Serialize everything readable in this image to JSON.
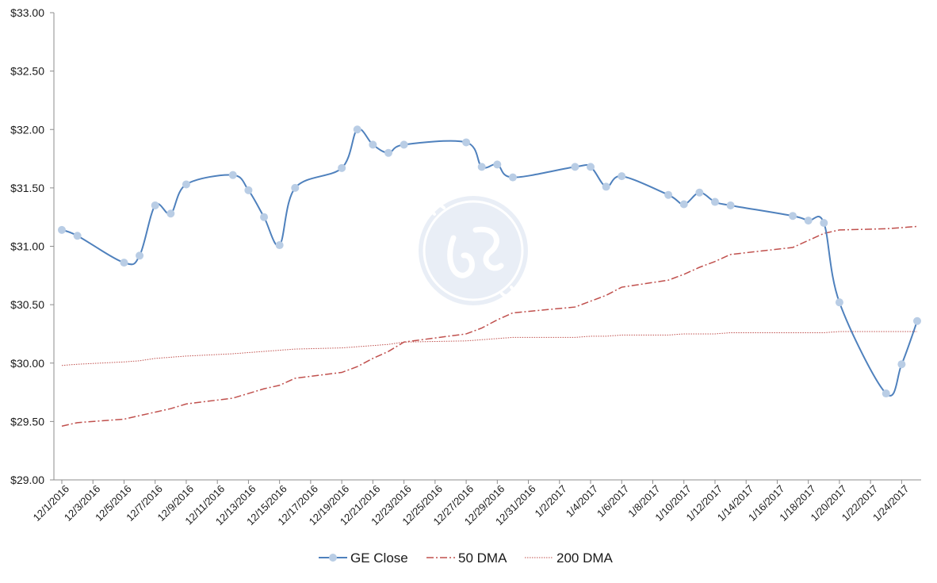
{
  "chart_data": {
    "type": "line",
    "title": "",
    "xlabel": "",
    "ylabel": "",
    "ylim": [
      29.0,
      33.0
    ],
    "y_ticks": [
      "$29.00",
      "$29.50",
      "$30.00",
      "$30.50",
      "$31.00",
      "$31.50",
      "$32.00",
      "$32.50",
      "$33.00"
    ],
    "x_range": [
      "2016-12-01",
      "2017-01-25"
    ],
    "x_tick_labels": [
      "12/1/2016",
      "12/3/2016",
      "12/5/2016",
      "12/7/2016",
      "12/9/2016",
      "12/11/2016",
      "12/13/2016",
      "12/15/2016",
      "12/17/2016",
      "12/19/2016",
      "12/21/2016",
      "12/23/2016",
      "12/25/2016",
      "12/27/2016",
      "12/29/2016",
      "12/31/2016",
      "1/2/2017",
      "1/4/2017",
      "1/6/2017",
      "1/8/2017",
      "1/10/2017",
      "1/12/2017",
      "1/14/2017",
      "1/16/2017",
      "1/18/2017",
      "1/20/2017",
      "1/22/2017",
      "1/24/2017"
    ],
    "grid": false,
    "legend_position": "bottom",
    "series": [
      {
        "name": "GE Close",
        "color": "#4f81bd",
        "marker_color": "#b9cde5",
        "style": "solid-smooth-markers",
        "points": [
          {
            "x": "2016-12-01",
            "y": 31.14
          },
          {
            "x": "2016-12-02",
            "y": 31.09
          },
          {
            "x": "2016-12-05",
            "y": 30.86
          },
          {
            "x": "2016-12-06",
            "y": 30.92
          },
          {
            "x": "2016-12-07",
            "y": 31.35
          },
          {
            "x": "2016-12-08",
            "y": 31.28
          },
          {
            "x": "2016-12-09",
            "y": 31.53
          },
          {
            "x": "2016-12-12",
            "y": 31.61
          },
          {
            "x": "2016-12-13",
            "y": 31.48
          },
          {
            "x": "2016-12-14",
            "y": 31.25
          },
          {
            "x": "2016-12-15",
            "y": 31.01
          },
          {
            "x": "2016-12-16",
            "y": 31.5
          },
          {
            "x": "2016-12-19",
            "y": 31.67
          },
          {
            "x": "2016-12-20",
            "y": 32.0
          },
          {
            "x": "2016-12-21",
            "y": 31.87
          },
          {
            "x": "2016-12-22",
            "y": 31.8
          },
          {
            "x": "2016-12-23",
            "y": 31.87
          },
          {
            "x": "2016-12-27",
            "y": 31.89
          },
          {
            "x": "2016-12-28",
            "y": 31.68
          },
          {
            "x": "2016-12-29",
            "y": 31.7
          },
          {
            "x": "2016-12-30",
            "y": 31.59
          },
          {
            "x": "2017-01-03",
            "y": 31.68
          },
          {
            "x": "2017-01-04",
            "y": 31.68
          },
          {
            "x": "2017-01-05",
            "y": 31.51
          },
          {
            "x": "2017-01-06",
            "y": 31.6
          },
          {
            "x": "2017-01-09",
            "y": 31.44
          },
          {
            "x": "2017-01-10",
            "y": 31.36
          },
          {
            "x": "2017-01-11",
            "y": 31.46
          },
          {
            "x": "2017-01-12",
            "y": 31.38
          },
          {
            "x": "2017-01-13",
            "y": 31.35
          },
          {
            "x": "2017-01-17",
            "y": 31.26
          },
          {
            "x": "2017-01-18",
            "y": 31.22
          },
          {
            "x": "2017-01-19",
            "y": 31.2
          },
          {
            "x": "2017-01-20",
            "y": 30.52
          },
          {
            "x": "2017-01-23",
            "y": 29.74
          },
          {
            "x": "2017-01-24",
            "y": 29.99
          },
          {
            "x": "2017-01-25",
            "y": 30.36
          }
        ]
      },
      {
        "name": "50 DMA",
        "color": "#c0504d",
        "style": "dash-dot",
        "points": [
          {
            "x": "2016-12-01",
            "y": 29.46
          },
          {
            "x": "2016-12-02",
            "y": 29.49
          },
          {
            "x": "2016-12-05",
            "y": 29.52
          },
          {
            "x": "2016-12-06",
            "y": 29.55
          },
          {
            "x": "2016-12-07",
            "y": 29.58
          },
          {
            "x": "2016-12-08",
            "y": 29.61
          },
          {
            "x": "2016-12-09",
            "y": 29.65
          },
          {
            "x": "2016-12-12",
            "y": 29.7
          },
          {
            "x": "2016-12-13",
            "y": 29.74
          },
          {
            "x": "2016-12-14",
            "y": 29.78
          },
          {
            "x": "2016-12-15",
            "y": 29.81
          },
          {
            "x": "2016-12-16",
            "y": 29.87
          },
          {
            "x": "2016-12-19",
            "y": 29.92
          },
          {
            "x": "2016-12-20",
            "y": 29.97
          },
          {
            "x": "2016-12-21",
            "y": 30.04
          },
          {
            "x": "2016-12-22",
            "y": 30.1
          },
          {
            "x": "2016-12-23",
            "y": 30.18
          },
          {
            "x": "2016-12-27",
            "y": 30.25
          },
          {
            "x": "2016-12-28",
            "y": 30.3
          },
          {
            "x": "2016-12-29",
            "y": 30.37
          },
          {
            "x": "2016-12-30",
            "y": 30.43
          },
          {
            "x": "2017-01-03",
            "y": 30.48
          },
          {
            "x": "2017-01-04",
            "y": 30.53
          },
          {
            "x": "2017-01-05",
            "y": 30.58
          },
          {
            "x": "2017-01-06",
            "y": 30.65
          },
          {
            "x": "2017-01-09",
            "y": 30.71
          },
          {
            "x": "2017-01-10",
            "y": 30.76
          },
          {
            "x": "2017-01-11",
            "y": 30.82
          },
          {
            "x": "2017-01-12",
            "y": 30.87
          },
          {
            "x": "2017-01-13",
            "y": 30.93
          },
          {
            "x": "2017-01-17",
            "y": 30.99
          },
          {
            "x": "2017-01-18",
            "y": 31.05
          },
          {
            "x": "2017-01-19",
            "y": 31.11
          },
          {
            "x": "2017-01-20",
            "y": 31.14
          },
          {
            "x": "2017-01-23",
            "y": 31.15
          },
          {
            "x": "2017-01-24",
            "y": 31.16
          },
          {
            "x": "2017-01-25",
            "y": 31.17
          }
        ]
      },
      {
        "name": "200 DMA",
        "color": "#c0504d",
        "style": "dotted",
        "points": [
          {
            "x": "2016-12-01",
            "y": 29.98
          },
          {
            "x": "2016-12-02",
            "y": 29.99
          },
          {
            "x": "2016-12-05",
            "y": 30.01
          },
          {
            "x": "2016-12-06",
            "y": 30.02
          },
          {
            "x": "2016-12-07",
            "y": 30.04
          },
          {
            "x": "2016-12-08",
            "y": 30.05
          },
          {
            "x": "2016-12-09",
            "y": 30.06
          },
          {
            "x": "2016-12-12",
            "y": 30.08
          },
          {
            "x": "2016-12-13",
            "y": 30.09
          },
          {
            "x": "2016-12-14",
            "y": 30.1
          },
          {
            "x": "2016-12-15",
            "y": 30.11
          },
          {
            "x": "2016-12-16",
            "y": 30.12
          },
          {
            "x": "2016-12-19",
            "y": 30.13
          },
          {
            "x": "2016-12-20",
            "y": 30.14
          },
          {
            "x": "2016-12-21",
            "y": 30.15
          },
          {
            "x": "2016-12-22",
            "y": 30.16
          },
          {
            "x": "2016-12-23",
            "y": 30.18
          },
          {
            "x": "2016-12-27",
            "y": 30.19
          },
          {
            "x": "2016-12-28",
            "y": 30.2
          },
          {
            "x": "2016-12-29",
            "y": 30.21
          },
          {
            "x": "2016-12-30",
            "y": 30.22
          },
          {
            "x": "2017-01-03",
            "y": 30.22
          },
          {
            "x": "2017-01-04",
            "y": 30.23
          },
          {
            "x": "2017-01-05",
            "y": 30.23
          },
          {
            "x": "2017-01-06",
            "y": 30.24
          },
          {
            "x": "2017-01-09",
            "y": 30.24
          },
          {
            "x": "2017-01-10",
            "y": 30.25
          },
          {
            "x": "2017-01-11",
            "y": 30.25
          },
          {
            "x": "2017-01-12",
            "y": 30.25
          },
          {
            "x": "2017-01-13",
            "y": 30.26
          },
          {
            "x": "2017-01-17",
            "y": 30.26
          },
          {
            "x": "2017-01-18",
            "y": 30.26
          },
          {
            "x": "2017-01-19",
            "y": 30.26
          },
          {
            "x": "2017-01-20",
            "y": 30.27
          },
          {
            "x": "2017-01-23",
            "y": 30.27
          },
          {
            "x": "2017-01-24",
            "y": 30.27
          },
          {
            "x": "2017-01-25",
            "y": 30.27
          }
        ]
      }
    ],
    "watermark_logo": "ge-monogram-logo"
  }
}
